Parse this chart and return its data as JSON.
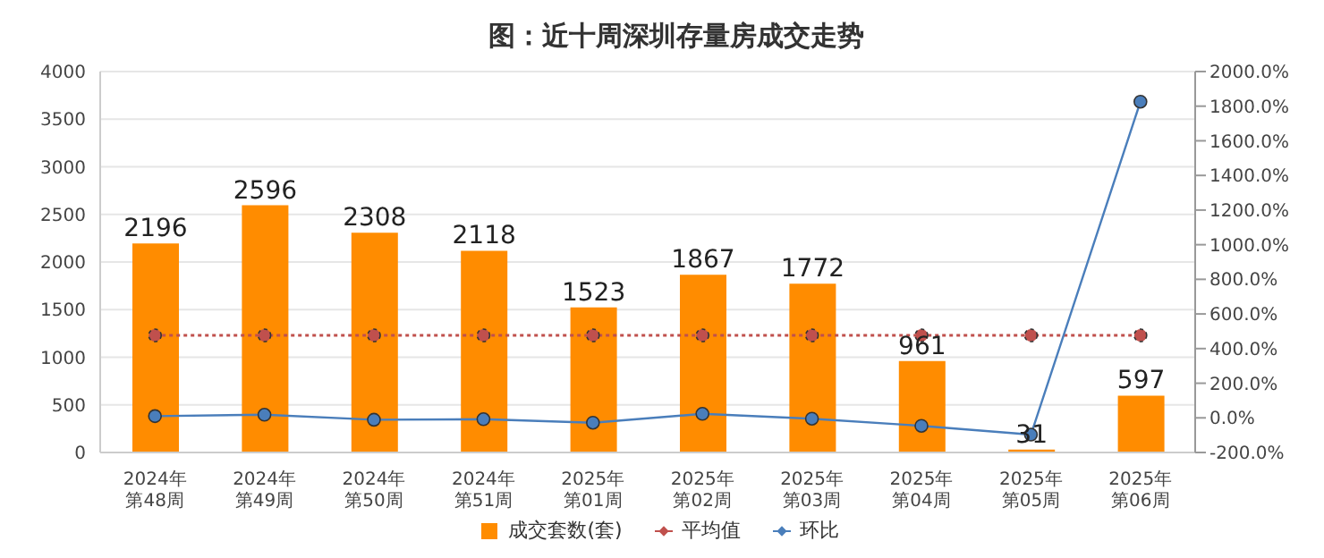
{
  "chart_data": {
    "type": "bar",
    "title": "图：近十周深圳存量房成交走势",
    "categories": [
      "2024年第48周",
      "2024年第49周",
      "2024年第50周",
      "2024年第51周",
      "2025年第01周",
      "2025年第02周",
      "2025年第03周",
      "2025年第04周",
      "2025年第05周",
      "2025年第06周"
    ],
    "series": [
      {
        "name": "成交套数(套)",
        "color": "#ff8c00",
        "values": [
          2196,
          2596,
          2308,
          2118,
          1523,
          1867,
          1772,
          961,
          31,
          597
        ],
        "value_labels": [
          "2196",
          "2596",
          "2308",
          "2118",
          "1523",
          "1867",
          "1772",
          "961",
          "31",
          "597"
        ]
      },
      {
        "name": "平均值",
        "type": "line",
        "color": "#c0504d",
        "line_style": "dotted",
        "values": [
          1230,
          1230,
          1230,
          1230,
          1230,
          1230,
          1230,
          1230,
          1230,
          1230
        ]
      },
      {
        "name": "环比",
        "type": "line",
        "color": "#4a7ebb",
        "line_style": "solid",
        "axis": "y2",
        "values": [
          10,
          18,
          -11,
          -8,
          -28,
          23,
          -5,
          -46,
          -97,
          1826
        ]
      }
    ],
    "ylim": [
      0,
      4000
    ],
    "yticks": [
      0,
      500,
      1000,
      1500,
      2000,
      2500,
      3000,
      3500,
      4000
    ],
    "y2lim": [
      -200,
      2000
    ],
    "y2ticks": [
      {
        "value": -200,
        "label": "-200.0%"
      },
      {
        "value": 0,
        "label": "0.0%"
      },
      {
        "value": 200,
        "label": "200.0%"
      },
      {
        "value": 400,
        "label": "400.0%"
      },
      {
        "value": 600,
        "label": "600.0%"
      },
      {
        "value": 800,
        "label": "800.0%"
      },
      {
        "value": 1000,
        "label": "1000.0%"
      },
      {
        "value": 1200,
        "label": "1200.0%"
      },
      {
        "value": 1400,
        "label": "1400.0%"
      },
      {
        "value": 1600,
        "label": "1600.0%"
      },
      {
        "value": 1800,
        "label": "1800.0%"
      },
      {
        "value": 2000,
        "label": "2000.0%"
      }
    ],
    "grid": "y",
    "legend": "bottom",
    "marker": "circle"
  }
}
